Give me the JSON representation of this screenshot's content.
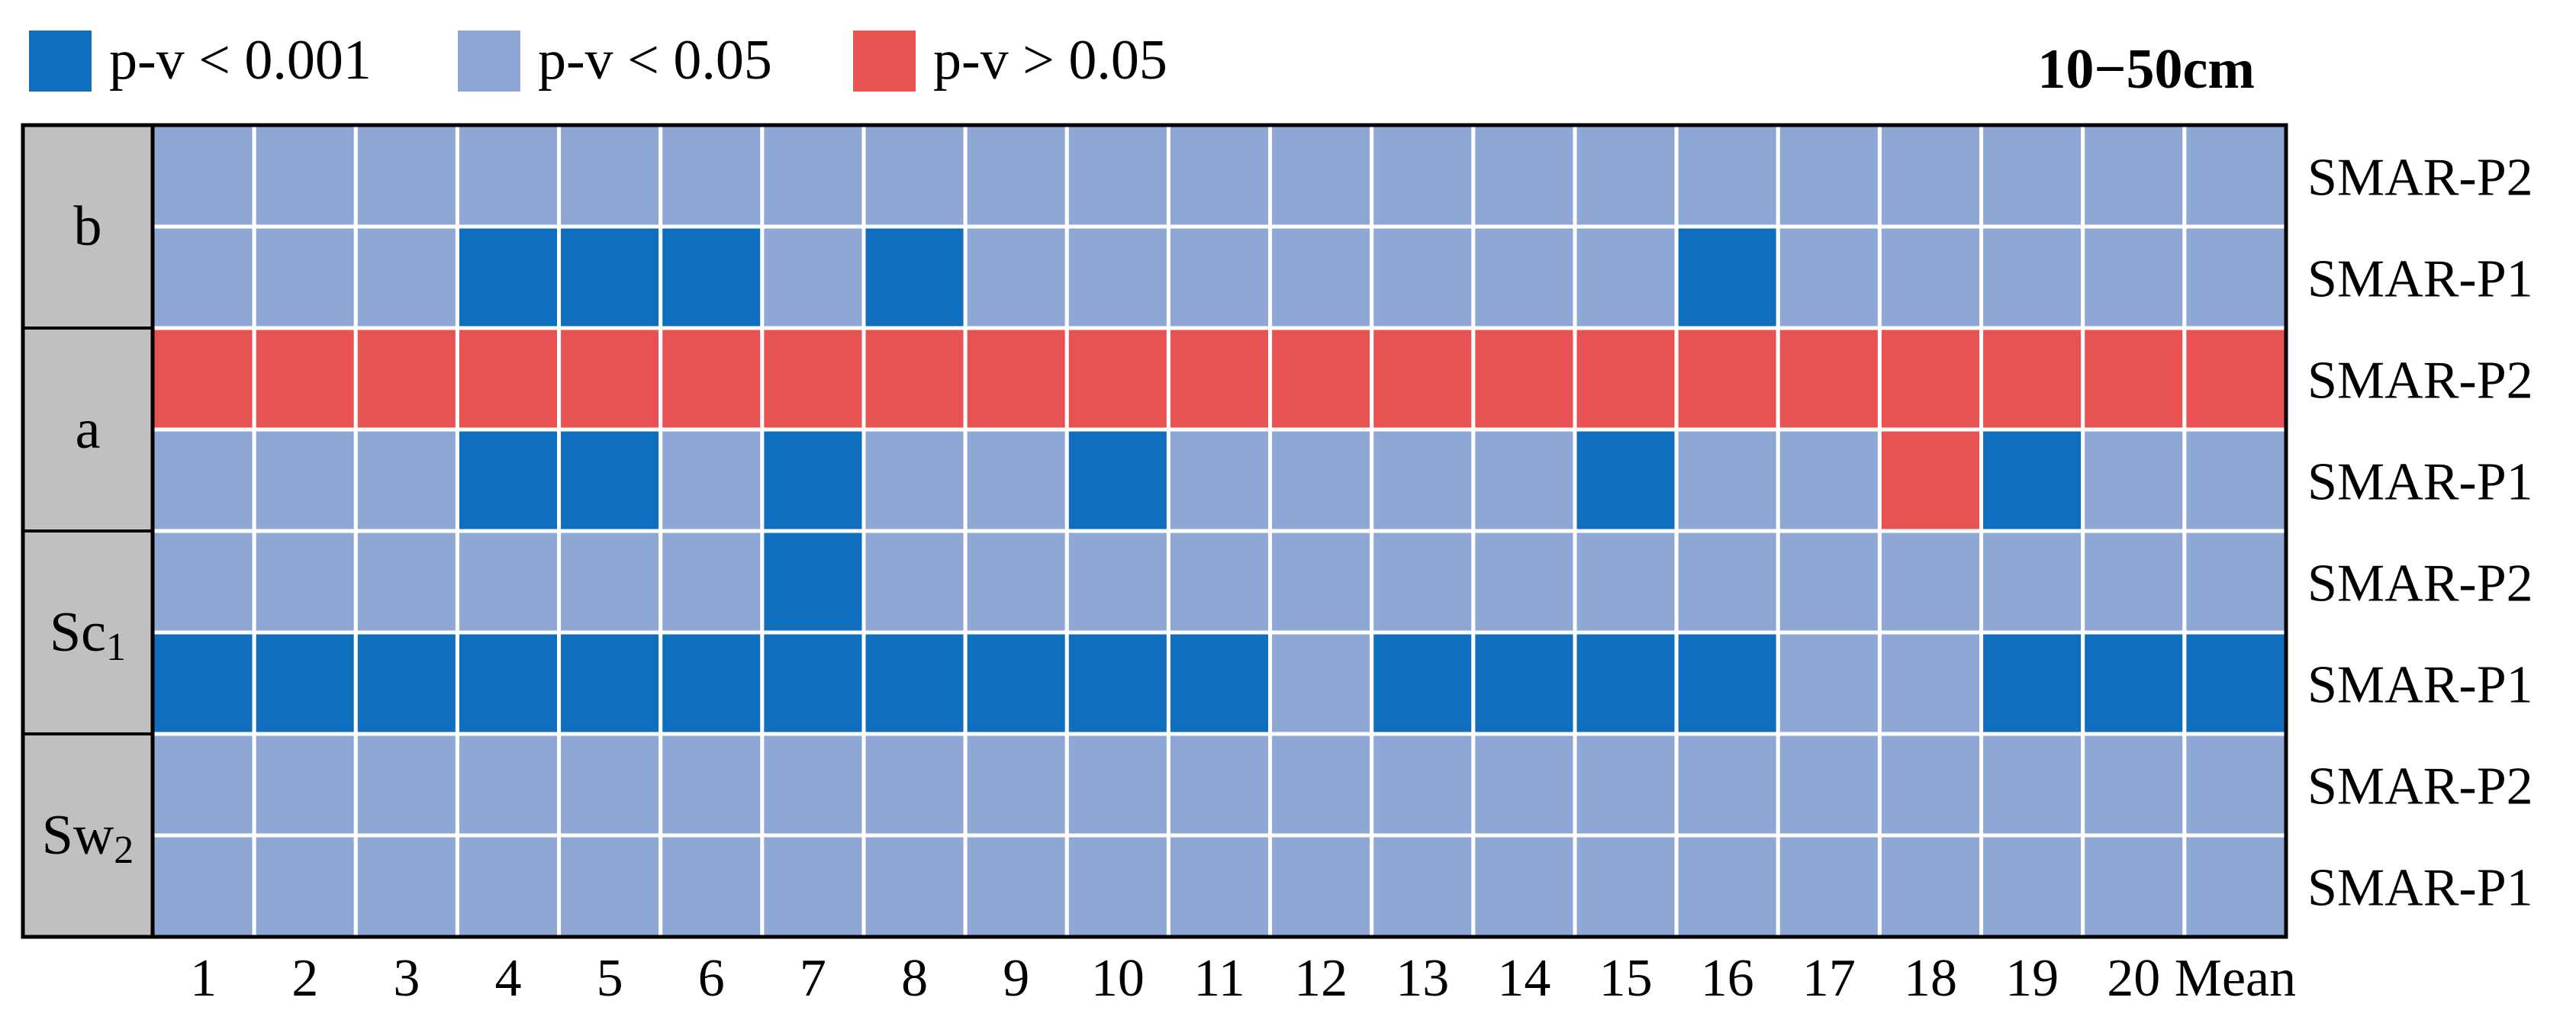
{
  "chart_data": {
    "type": "heatmap",
    "title": "10−50cm",
    "legend": [
      {
        "key": "s001",
        "label": "p-v < 0.001",
        "color": "#0f6ebe"
      },
      {
        "key": "s05",
        "label": "p-v < 0.05",
        "color": "#8fa7d4"
      },
      {
        "key": "ns",
        "label": "p-v > 0.05",
        "color": "#e85252"
      }
    ],
    "legend_placement": "top-left",
    "columns": [
      "1",
      "2",
      "3",
      "4",
      "5",
      "6",
      "7",
      "8",
      "9",
      "10",
      "11",
      "12",
      "13",
      "14",
      "15",
      "16",
      "17",
      "18",
      "19",
      "20",
      "Mean"
    ],
    "groups": [
      {
        "name": "b",
        "sub": "",
        "rows": [
          {
            "label": "SMAR-P2",
            "values": [
              "s05",
              "s05",
              "s05",
              "s05",
              "s05",
              "s05",
              "s05",
              "s05",
              "s05",
              "s05",
              "s05",
              "s05",
              "s05",
              "s05",
              "s05",
              "s05",
              "s05",
              "s05",
              "s05",
              "s05",
              "s05"
            ]
          },
          {
            "label": "SMAR-P1",
            "values": [
              "s05",
              "s05",
              "s05",
              "s001",
              "s001",
              "s001",
              "s05",
              "s001",
              "s05",
              "s05",
              "s05",
              "s05",
              "s05",
              "s05",
              "s05",
              "s001",
              "s05",
              "s05",
              "s05",
              "s05",
              "s05"
            ]
          }
        ]
      },
      {
        "name": "a",
        "sub": "",
        "rows": [
          {
            "label": "SMAR-P2",
            "values": [
              "ns",
              "ns",
              "ns",
              "ns",
              "ns",
              "ns",
              "ns",
              "ns",
              "ns",
              "ns",
              "ns",
              "ns",
              "ns",
              "ns",
              "ns",
              "ns",
              "ns",
              "ns",
              "ns",
              "ns",
              "ns"
            ]
          },
          {
            "label": "SMAR-P1",
            "values": [
              "s05",
              "s05",
              "s05",
              "s001",
              "s001",
              "s05",
              "s001",
              "s05",
              "s05",
              "s001",
              "s05",
              "s05",
              "s05",
              "s05",
              "s001",
              "s05",
              "s05",
              "ns",
              "s001",
              "s05",
              "s05"
            ]
          }
        ]
      },
      {
        "name": "Sc",
        "sub": "1",
        "rows": [
          {
            "label": "SMAR-P2",
            "values": [
              "s05",
              "s05",
              "s05",
              "s05",
              "s05",
              "s05",
              "s001",
              "s05",
              "s05",
              "s05",
              "s05",
              "s05",
              "s05",
              "s05",
              "s05",
              "s05",
              "s05",
              "s05",
              "s05",
              "s05",
              "s05"
            ]
          },
          {
            "label": "SMAR-P1",
            "values": [
              "s001",
              "s001",
              "s001",
              "s001",
              "s001",
              "s001",
              "s001",
              "s001",
              "s001",
              "s001",
              "s001",
              "s05",
              "s001",
              "s001",
              "s001",
              "s001",
              "s05",
              "s05",
              "s001",
              "s001",
              "s001"
            ]
          }
        ]
      },
      {
        "name": "Sw",
        "sub": "2",
        "rows": [
          {
            "label": "SMAR-P2",
            "values": [
              "s05",
              "s05",
              "s05",
              "s05",
              "s05",
              "s05",
              "s05",
              "s05",
              "s05",
              "s05",
              "s05",
              "s05",
              "s05",
              "s05",
              "s05",
              "s05",
              "s05",
              "s05",
              "s05",
              "s05",
              "s05"
            ]
          },
          {
            "label": "SMAR-P1",
            "values": [
              "s05",
              "s05",
              "s05",
              "s05",
              "s05",
              "s05",
              "s05",
              "s05",
              "s05",
              "s05",
              "s05",
              "s05",
              "s05",
              "s05",
              "s05",
              "s05",
              "s05",
              "s05",
              "s05",
              "s05",
              "s05"
            ]
          }
        ]
      }
    ],
    "grid": true
  }
}
